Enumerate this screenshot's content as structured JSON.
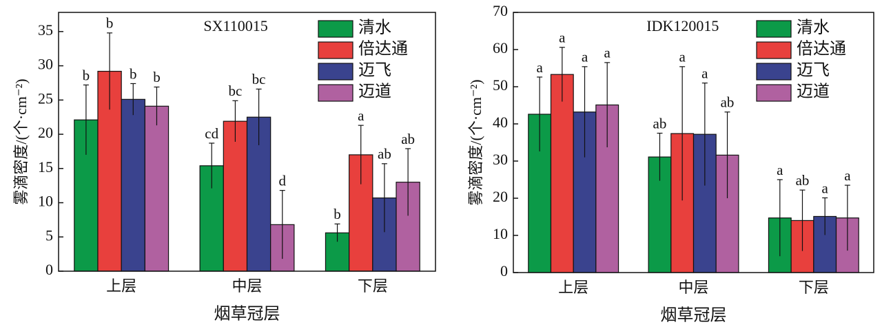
{
  "chart_data": [
    {
      "type": "bar",
      "title": "SX110015",
      "x_label": "烟草冠层",
      "y_label": "雾滴密度/(个·cm⁻²)",
      "categories": [
        "上层",
        "中层",
        "下层"
      ],
      "ylim": [
        0,
        37.8
      ],
      "yticks": [
        0,
        5,
        10,
        15,
        20,
        25,
        30,
        35
      ],
      "series": [
        {
          "name": "清水",
          "color": "#0c9a48",
          "values": [
            22.1,
            15.4,
            5.6
          ],
          "errors": [
            5.1,
            3.3,
            1.3
          ],
          "letters": [
            "b",
            "cd",
            "b"
          ]
        },
        {
          "name": "倍达通",
          "color": "#e8403d",
          "values": [
            29.2,
            21.9,
            17.0
          ],
          "errors": [
            5.6,
            3.0,
            4.3
          ],
          "letters": [
            "b",
            "bc",
            "a"
          ]
        },
        {
          "name": "迈飞",
          "color": "#3a438e",
          "values": [
            25.1,
            22.5,
            10.7
          ],
          "errors": [
            2.3,
            4.1,
            5.0
          ],
          "letters": [
            "b",
            "bc",
            "ab"
          ]
        },
        {
          "name": "迈道",
          "color": "#b061a0",
          "values": [
            24.1,
            6.8,
            13.0
          ],
          "errors": [
            2.8,
            5.0,
            4.9
          ],
          "letters": [
            "b",
            "d",
            "ab"
          ]
        }
      ]
    },
    {
      "type": "bar",
      "title": "IDK120015",
      "x_label": "烟草冠层",
      "y_label": "雾滴密度/(个·cm⁻²)",
      "categories": [
        "上层",
        "中层",
        "下层"
      ],
      "ylim": [
        0,
        70
      ],
      "yticks": [
        0,
        10,
        20,
        30,
        40,
        50,
        60,
        70
      ],
      "series": [
        {
          "name": "清水",
          "color": "#0c9a48",
          "values": [
            42.6,
            31.1,
            14.7
          ],
          "errors": [
            10.0,
            6.4,
            10.3
          ],
          "letters": [
            "a",
            "ab",
            "a"
          ]
        },
        {
          "name": "倍达通",
          "color": "#e8403d",
          "values": [
            53.3,
            37.4,
            14.0
          ],
          "errors": [
            7.3,
            18.0,
            8.2
          ],
          "letters": [
            "a",
            "a",
            "ab"
          ]
        },
        {
          "name": "迈飞",
          "color": "#3a438e",
          "values": [
            43.2,
            37.2,
            15.1
          ],
          "errors": [
            12.2,
            13.8,
            5.0
          ],
          "letters": [
            "a",
            "a",
            "a"
          ]
        },
        {
          "name": "迈道",
          "color": "#b061a0",
          "values": [
            45.1,
            31.6,
            14.7
          ],
          "errors": [
            11.4,
            11.6,
            8.8
          ],
          "letters": [
            "a",
            "ab",
            "a"
          ]
        }
      ]
    }
  ]
}
